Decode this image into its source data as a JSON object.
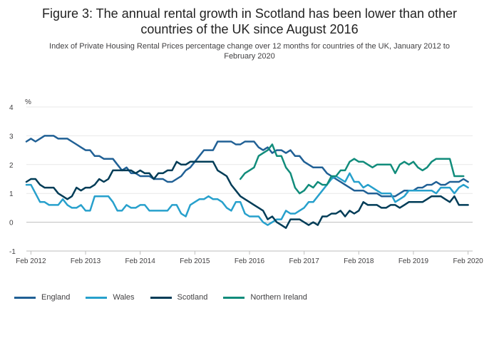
{
  "title_line1": "Figure 3: The annual rental growth in Scotland has been lower than other",
  "title_line2": "countries of the UK since August 2016",
  "subtitle_line1": "Index of Private Housing Rental Prices percentage change over 12 months for countries of the UK, January 2012 to",
  "subtitle_line2": "February 2020",
  "colors": {
    "england": "#206095",
    "wales": "#27a0cc",
    "scotland": "#003c57",
    "northern_ireland": "#118c7b",
    "grid": "#e8e8e8",
    "axis": "#bebebe"
  },
  "chart_data": {
    "type": "line",
    "xlabel": "",
    "ylabel": "%",
    "xlim": [
      2012.0,
      2020.1667
    ],
    "ylim": [
      -1,
      4
    ],
    "yticks": [
      -1,
      0,
      1,
      2,
      3,
      4
    ],
    "xticks": [
      {
        "label": "Feb 2012",
        "x": 2012.0833
      },
      {
        "label": "Feb 2013",
        "x": 2013.0833
      },
      {
        "label": "Feb 2014",
        "x": 2014.0833
      },
      {
        "label": "Feb 2015",
        "x": 2015.0833
      },
      {
        "label": "Feb 2016",
        "x": 2016.0833
      },
      {
        "label": "Feb 2017",
        "x": 2017.0833
      },
      {
        "label": "Feb 2018",
        "x": 2018.0833
      },
      {
        "label": "Feb 2019",
        "x": 2019.0833
      },
      {
        "label": "Feb 2020",
        "x": 2020.0833
      }
    ],
    "grid": true,
    "legend_position": "bottom-left",
    "series": [
      {
        "name": "England",
        "color": "#206095",
        "start": 2012.0,
        "step": 0.08333,
        "values": [
          2.8,
          2.9,
          2.8,
          2.9,
          3.0,
          3.0,
          3.0,
          2.9,
          2.9,
          2.9,
          2.8,
          2.7,
          2.6,
          2.5,
          2.5,
          2.3,
          2.3,
          2.2,
          2.2,
          2.2,
          2.0,
          1.8,
          1.9,
          1.7,
          1.7,
          1.6,
          1.6,
          1.6,
          1.5,
          1.5,
          1.5,
          1.4,
          1.4,
          1.5,
          1.6,
          1.8,
          1.9,
          2.1,
          2.3,
          2.5,
          2.5,
          2.5,
          2.8,
          2.8,
          2.8,
          2.8,
          2.7,
          2.7,
          2.8,
          2.8,
          2.8,
          2.6,
          2.5,
          2.6,
          2.4,
          2.5,
          2.5,
          2.4,
          2.5,
          2.3,
          2.3,
          2.1,
          2.0,
          1.9,
          1.9,
          1.9,
          1.7,
          1.6,
          1.5,
          1.4,
          1.3,
          1.2,
          1.1,
          1.1,
          1.1,
          1.0,
          1.0,
          1.0,
          0.9,
          0.9,
          0.9,
          0.9,
          1.0,
          1.1,
          1.1,
          1.1,
          1.2,
          1.2,
          1.3,
          1.3,
          1.4,
          1.3,
          1.3,
          1.4,
          1.4,
          1.4,
          1.5,
          1.4
        ]
      },
      {
        "name": "Wales",
        "color": "#27a0cc",
        "start": 2012.0,
        "step": 0.08333,
        "values": [
          1.3,
          1.3,
          1.0,
          0.7,
          0.7,
          0.6,
          0.6,
          0.6,
          0.8,
          0.6,
          0.5,
          0.5,
          0.6,
          0.4,
          0.4,
          0.9,
          0.9,
          0.9,
          0.9,
          0.7,
          0.4,
          0.4,
          0.6,
          0.5,
          0.5,
          0.6,
          0.6,
          0.4,
          0.4,
          0.4,
          0.4,
          0.4,
          0.6,
          0.6,
          0.3,
          0.2,
          0.6,
          0.7,
          0.8,
          0.8,
          0.9,
          0.8,
          0.8,
          0.7,
          0.5,
          0.4,
          0.7,
          0.7,
          0.3,
          0.2,
          0.2,
          0.2,
          0.0,
          -0.1,
          0.0,
          0.1,
          0.1,
          0.4,
          0.3,
          0.3,
          0.4,
          0.5,
          0.7,
          0.7,
          0.9,
          1.1,
          1.3,
          1.5,
          1.6,
          1.5,
          1.4,
          1.7,
          1.4,
          1.4,
          1.2,
          1.3,
          1.2,
          1.1,
          1.0,
          1.0,
          1.0,
          0.7,
          0.8,
          0.9,
          1.1,
          1.1,
          1.1,
          1.1,
          1.1,
          1.1,
          1.0,
          1.2,
          1.2,
          1.2,
          1.0,
          1.2,
          1.3,
          1.2
        ]
      },
      {
        "name": "Scotland",
        "color": "#003c57",
        "start": 2012.0,
        "step": 0.08333,
        "values": [
          1.4,
          1.5,
          1.5,
          1.3,
          1.2,
          1.2,
          1.2,
          1.0,
          0.9,
          0.8,
          0.9,
          1.2,
          1.1,
          1.2,
          1.2,
          1.3,
          1.5,
          1.4,
          1.5,
          1.8,
          1.8,
          1.8,
          1.8,
          1.8,
          1.7,
          1.8,
          1.7,
          1.7,
          1.5,
          1.7,
          1.7,
          1.8,
          1.8,
          2.1,
          2.0,
          2.0,
          2.1,
          2.1,
          2.1,
          2.1,
          2.1,
          2.1,
          1.8,
          1.7,
          1.6,
          1.3,
          1.1,
          0.9,
          0.8,
          0.7,
          0.6,
          0.5,
          0.4,
          0.1,
          0.2,
          0.0,
          -0.1,
          -0.2,
          0.1,
          0.1,
          0.1,
          0.0,
          -0.1,
          0.0,
          -0.1,
          0.2,
          0.2,
          0.3,
          0.3,
          0.4,
          0.2,
          0.4,
          0.3,
          0.4,
          0.7,
          0.6,
          0.6,
          0.6,
          0.5,
          0.5,
          0.6,
          0.6,
          0.5,
          0.6,
          0.7,
          0.7,
          0.7,
          0.7,
          0.8,
          0.9,
          0.9,
          0.9,
          0.8,
          0.7,
          0.9,
          0.6,
          0.6,
          0.6
        ]
      },
      {
        "name": "Northern Ireland",
        "color": "#118c7b",
        "start": 2015.9167,
        "step": 0.08333,
        "values": [
          1.5,
          1.7,
          1.8,
          1.9,
          2.3,
          2.4,
          2.5,
          2.7,
          2.3,
          2.3,
          1.9,
          1.7,
          1.2,
          1.0,
          1.1,
          1.3,
          1.2,
          1.4,
          1.3,
          1.3,
          1.6,
          1.6,
          1.8,
          1.8,
          2.1,
          2.2,
          2.1,
          2.1,
          2.0,
          1.9,
          2.0,
          2.0,
          2.0,
          2.0,
          1.7,
          2.0,
          2.1,
          2.0,
          2.1,
          1.9,
          1.8,
          1.9,
          2.1,
          2.2,
          2.2,
          2.2,
          2.2,
          1.6,
          1.6,
          1.6
        ]
      }
    ]
  }
}
